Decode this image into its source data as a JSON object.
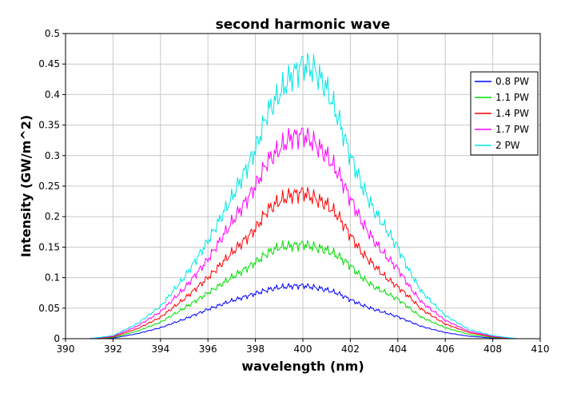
{
  "chart_data": {
    "type": "line",
    "title": "second harmonic wave",
    "xlabel": "wavelength (nm)",
    "ylabel": "Intensity (GW/m^2)",
    "xlim": [
      390,
      410
    ],
    "ylim": [
      0,
      0.5
    ],
    "xticks": [
      "390",
      "392",
      "394",
      "396",
      "398",
      "400",
      "402",
      "404",
      "406",
      "408",
      "410"
    ],
    "yticks": [
      "0",
      "0.05",
      "0.1",
      "0.15",
      "0.2",
      "0.25",
      "0.3",
      "0.35",
      "0.4",
      "0.45",
      "0.5"
    ],
    "grid": true,
    "legend_position": "top-right",
    "x": [
      391,
      392,
      393,
      394,
      395,
      396,
      397,
      398,
      398.5,
      399,
      399.5,
      400,
      400.5,
      401,
      401.5,
      402,
      402.5,
      403,
      403.5,
      404,
      404.5,
      405,
      406,
      407,
      408,
      409,
      410
    ],
    "series": [
      {
        "name": "0.8 PW",
        "color": "#0000ff",
        "values": [
          0,
          0.001,
          0.008,
          0.018,
          0.032,
          0.048,
          0.062,
          0.074,
          0.08,
          0.084,
          0.086,
          0.087,
          0.084,
          0.08,
          0.074,
          0.064,
          0.055,
          0.048,
          0.042,
          0.036,
          0.028,
          0.02,
          0.01,
          0.004,
          0.001,
          0,
          0
        ]
      },
      {
        "name": "1.1 PW",
        "color": "#00dd00",
        "values": [
          0,
          0.002,
          0.012,
          0.027,
          0.05,
          0.075,
          0.1,
          0.125,
          0.14,
          0.15,
          0.152,
          0.155,
          0.15,
          0.145,
          0.135,
          0.12,
          0.1,
          0.085,
          0.075,
          0.065,
          0.05,
          0.035,
          0.018,
          0.007,
          0.002,
          0,
          0
        ]
      },
      {
        "name": "1.4 PW",
        "color": "#ff0000",
        "values": [
          0,
          0.003,
          0.016,
          0.035,
          0.065,
          0.1,
          0.14,
          0.18,
          0.21,
          0.225,
          0.235,
          0.24,
          0.23,
          0.22,
          0.2,
          0.17,
          0.14,
          0.12,
          0.1,
          0.085,
          0.068,
          0.048,
          0.024,
          0.01,
          0.003,
          0,
          0
        ]
      },
      {
        "name": "1.7 PW",
        "color": "#ff00ff",
        "values": [
          0,
          0.004,
          0.02,
          0.044,
          0.082,
          0.13,
          0.19,
          0.25,
          0.29,
          0.31,
          0.33,
          0.335,
          0.32,
          0.3,
          0.27,
          0.23,
          0.19,
          0.16,
          0.135,
          0.115,
          0.085,
          0.06,
          0.03,
          0.012,
          0.004,
          0,
          0
        ]
      },
      {
        "name": "2 PW",
        "color": "#00e5e5",
        "values": [
          0,
          0.005,
          0.024,
          0.053,
          0.1,
          0.16,
          0.23,
          0.31,
          0.37,
          0.4,
          0.43,
          0.45,
          0.44,
          0.41,
          0.36,
          0.3,
          0.25,
          0.21,
          0.18,
          0.15,
          0.11,
          0.077,
          0.038,
          0.015,
          0.005,
          0,
          0
        ]
      }
    ]
  }
}
